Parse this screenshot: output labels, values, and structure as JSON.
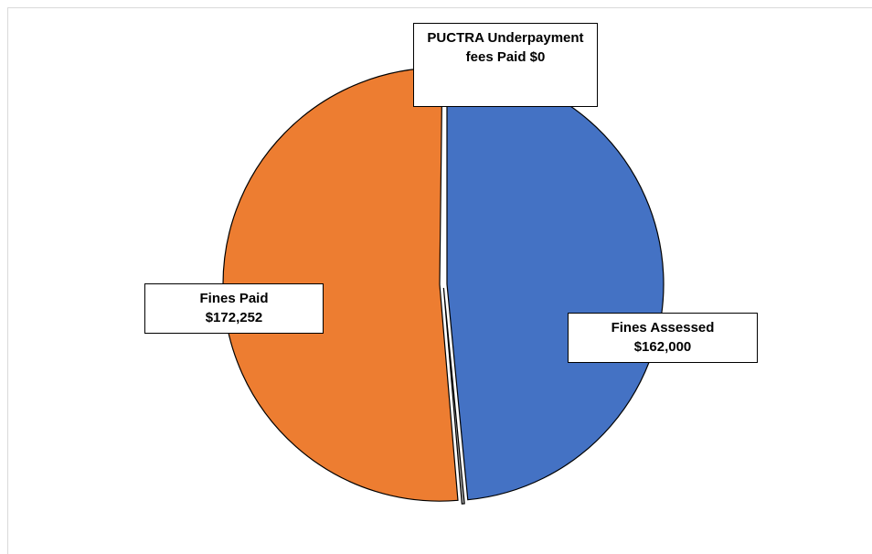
{
  "chart_data": {
    "type": "pie",
    "title": "",
    "slices": [
      {
        "label": "Fines Assessed",
        "value": 162000,
        "value_label": "$162,000",
        "color": "#4472c4"
      },
      {
        "label": "PUCTRA Underpayment fees Paid",
        "value": 0,
        "value_label": "$0",
        "color": "#a5a5a5"
      },
      {
        "label": "Fines Paid",
        "value": 172252,
        "value_label": "$172,252",
        "color": "#ed7d31"
      }
    ],
    "start_angle_deg": 0,
    "direction": "clockwise",
    "exploded": true,
    "legend": "none"
  },
  "labels": {
    "underpayment_line1": "PUCTRA Underpayment",
    "underpayment_line2": "fees Paid $0",
    "fines_paid_line1": "Fines Paid",
    "fines_paid_line2": "$172,252",
    "fines_assessed_line1": "Fines Assessed",
    "fines_assessed_line2": "$162,000"
  }
}
